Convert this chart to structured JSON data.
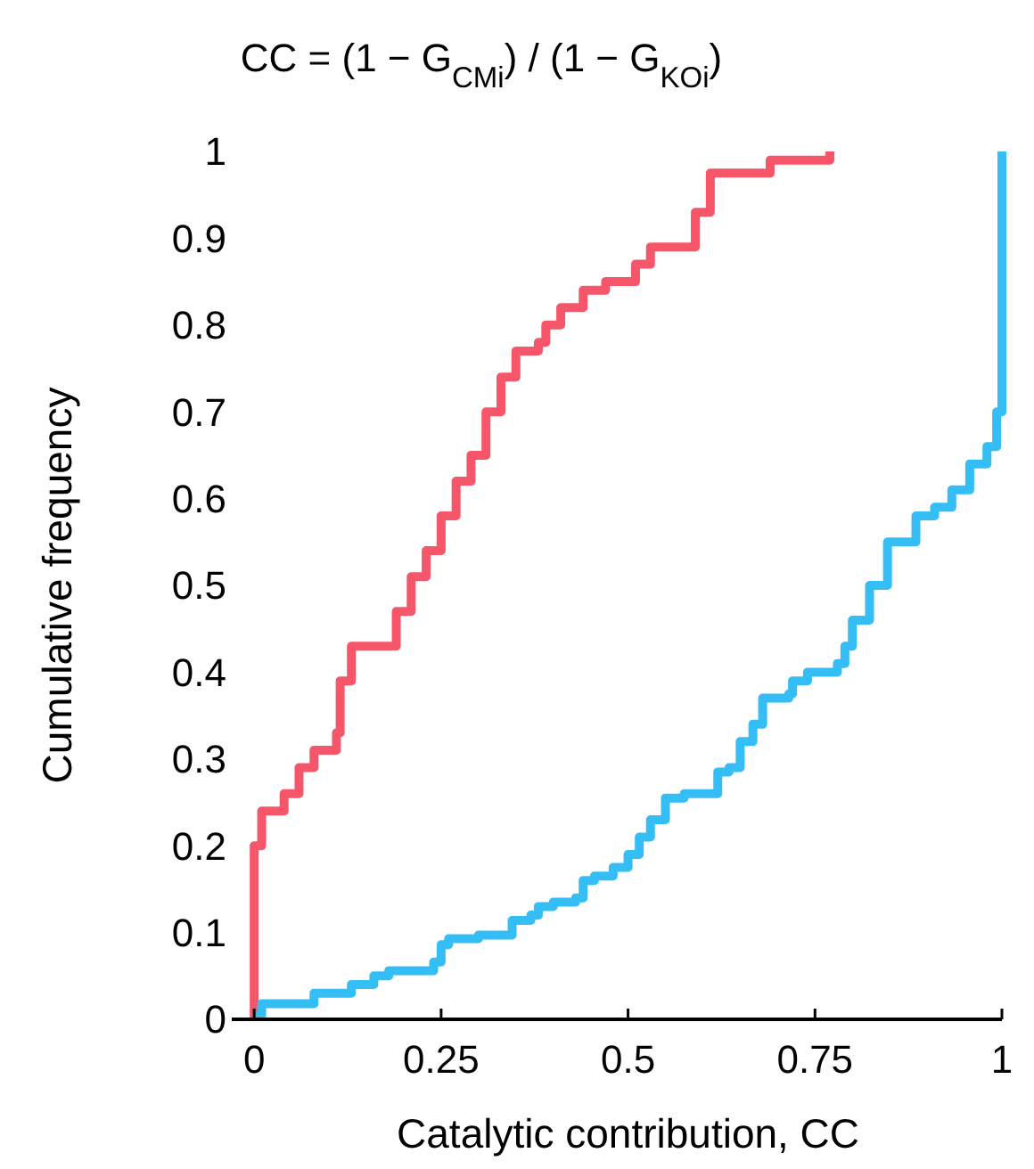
{
  "chart_data": {
    "type": "step",
    "title": "CC = (1 − G$_{CMi}$) / (1 − G$_{KOi}$)",
    "xlabel": "Catalytic contribution, CC",
    "ylabel": "Cumulative frequency",
    "xlim": [
      -0.03,
      1
    ],
    "xticks": [
      0,
      0.25,
      0.5,
      0.75,
      1
    ],
    "ylim": [
      0,
      1
    ],
    "yticks": [
      0,
      0.1,
      0.2,
      0.3,
      0.4,
      0.5,
      0.6,
      0.7,
      0.8,
      0.9,
      1
    ],
    "grid": false,
    "line_style": "solid",
    "marker": "none",
    "series": [
      {
        "color": "#f5566a",
        "x": [
          0,
          0,
          0.01,
          0.04,
          0.06,
          0.08,
          0.11,
          0.115,
          0.13,
          0.18,
          0.19,
          0.21,
          0.23,
          0.25,
          0.27,
          0.29,
          0.31,
          0.33,
          0.35,
          0.38,
          0.39,
          0.41,
          0.44,
          0.47,
          0.51,
          0.53,
          0.59,
          0.61,
          0.69,
          0.77
        ],
        "values": [
          0,
          0.2,
          0.24,
          0.26,
          0.29,
          0.31,
          0.33,
          0.39,
          0.43,
          0.43,
          0.47,
          0.51,
          0.54,
          0.58,
          0.62,
          0.65,
          0.7,
          0.74,
          0.77,
          0.78,
          0.8,
          0.82,
          0.84,
          0.85,
          0.87,
          0.89,
          0.93,
          0.975,
          0.99,
          1
        ]
      },
      {
        "color": "#35bdf5",
        "x": [
          0,
          0.01,
          0.08,
          0.13,
          0.16,
          0.18,
          0.24,
          0.25,
          0.26,
          0.3,
          0.345,
          0.37,
          0.38,
          0.4,
          0.43,
          0.44,
          0.455,
          0.48,
          0.5,
          0.515,
          0.53,
          0.55,
          0.575,
          0.62,
          0.635,
          0.65,
          0.667,
          0.68,
          0.715,
          0.72,
          0.74,
          0.78,
          0.79,
          0.8,
          0.823,
          0.847,
          0.885,
          0.91,
          0.933,
          0.957,
          0.98,
          0.993,
          1,
          1
        ],
        "values": [
          0.004,
          0.018,
          0.03,
          0.04,
          0.05,
          0.056,
          0.066,
          0.086,
          0.093,
          0.097,
          0.114,
          0.12,
          0.13,
          0.135,
          0.14,
          0.16,
          0.165,
          0.175,
          0.19,
          0.21,
          0.23,
          0.255,
          0.26,
          0.285,
          0.29,
          0.32,
          0.34,
          0.37,
          0.375,
          0.39,
          0.4,
          0.41,
          0.43,
          0.46,
          0.5,
          0.55,
          0.58,
          0.59,
          0.61,
          0.64,
          0.66,
          0.7,
          0.71,
          1
        ]
      }
    ]
  }
}
